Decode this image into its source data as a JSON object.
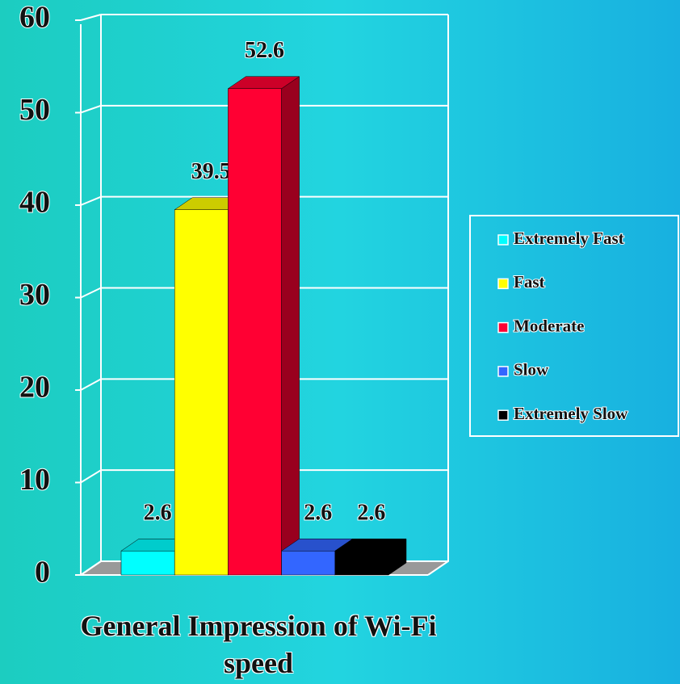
{
  "chart_data": {
    "type": "bar3d",
    "x_label": "General Impression of Wi-Fi speed",
    "categories": [
      "General Impression of Wi-Fi speed"
    ],
    "series": [
      {
        "name": "Extremely Fast",
        "color": "#00ffff",
        "values": [
          2.6
        ]
      },
      {
        "name": "Fast",
        "color": "#ffff00",
        "values": [
          39.5
        ]
      },
      {
        "name": "Moderate",
        "color": "#ff0033",
        "values": [
          52.6
        ]
      },
      {
        "name": "Slow",
        "color": "#3366ff",
        "values": [
          2.6
        ]
      },
      {
        "name": "Extremely Slow",
        "color": "#000000",
        "values": [
          2.6
        ]
      }
    ],
    "ylim": [
      0,
      60
    ],
    "yticks": [
      0,
      10,
      20,
      30,
      40,
      50,
      60
    ],
    "grid": true,
    "legend": "right"
  }
}
